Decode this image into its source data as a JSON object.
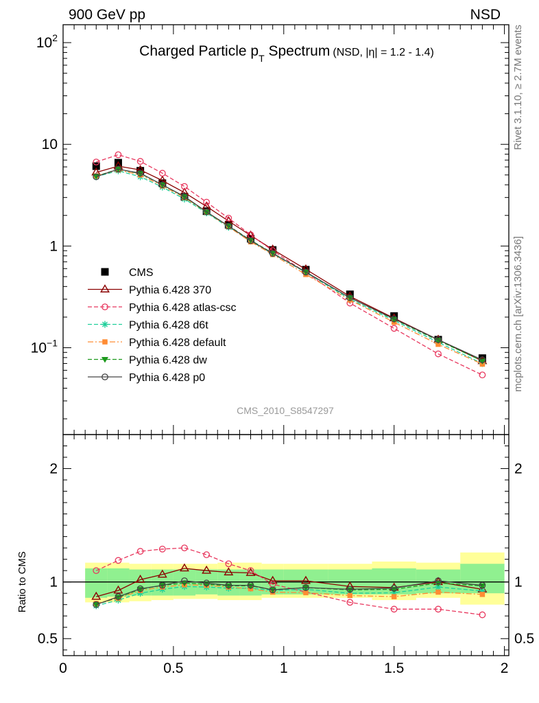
{
  "header": {
    "left": "900 GeV pp",
    "right": "NSD"
  },
  "side": {
    "upper": "Rivet 3.1.10, ≥ 2.7M events",
    "lower": "mcplots.cern.ch [arXiv:1306.3436]"
  },
  "title": {
    "main": "Charged Particle p",
    "sub": "T",
    "tail": " Spectrum",
    "small": "(NSD, |η| = 1.2 - 1.4)"
  },
  "watermark": "CMS_2010_S8547297",
  "colors": {
    "data": "#000000",
    "p370": "#8b0000",
    "atlas": "#e8365d",
    "d6t": "#1fcf9a",
    "default": "#ff8c33",
    "dw": "#1c9a1c",
    "p0": "#444444",
    "band_inner": "#90f090",
    "band_outer": "#ffff99"
  },
  "chart_data": {
    "type": "line",
    "x_ticks": [
      "0",
      "0.5",
      "1",
      "1.5",
      "2"
    ],
    "xlim": [
      0,
      2.02
    ],
    "upper": {
      "yscale": "log",
      "ylim": [
        0.014,
        150
      ],
      "y_ticks": [
        "10",
        "1"
      ],
      "x": [
        0.15,
        0.25,
        0.35,
        0.45,
        0.55,
        0.65,
        0.75,
        0.85,
        0.95,
        1.1,
        1.3,
        1.5,
        1.7,
        1.9
      ],
      "series": [
        {
          "name": "CMS",
          "key": "data",
          "marker": "square",
          "values": [
            6.1,
            6.6,
            5.5,
            4.15,
            3.05,
            2.2,
            1.62,
            1.18,
            0.915,
            0.585,
            0.335,
            0.205,
            0.12,
            0.079
          ]
        },
        {
          "name": "Pythia 6.428 370",
          "key": "p370",
          "marker": "triangle",
          "values": [
            5.3,
            6.1,
            5.6,
            4.4,
            3.35,
            2.45,
            1.76,
            1.27,
            0.925,
            0.59,
            0.32,
            0.195,
            0.12,
            0.074
          ]
        },
        {
          "name": "Pythia 6.428 atlas-csc",
          "key": "atlas",
          "marker": "circle-open",
          "values": [
            6.7,
            7.9,
            6.8,
            5.2,
            3.85,
            2.7,
            1.88,
            1.29,
            0.9,
            0.55,
            0.275,
            0.155,
            0.087,
            0.054
          ]
        },
        {
          "name": "Pythia 6.428 d6t",
          "key": "d6t",
          "marker": "star",
          "values": [
            4.8,
            5.5,
            4.8,
            3.8,
            2.9,
            2.12,
            1.53,
            1.12,
            0.84,
            0.55,
            0.3,
            0.185,
            0.113,
            0.07
          ]
        },
        {
          "name": "Pythia 6.428 default",
          "key": "default",
          "marker": "square-small",
          "values": [
            4.9,
            5.6,
            5.0,
            3.9,
            3.0,
            2.15,
            1.55,
            1.1,
            0.825,
            0.525,
            0.295,
            0.178,
            0.108,
            0.069
          ]
        },
        {
          "name": "Pythia 6.428 dw",
          "key": "dw",
          "marker": "triangle-down",
          "values": [
            4.85,
            5.7,
            5.15,
            4.0,
            3.05,
            2.15,
            1.58,
            1.14,
            0.85,
            0.555,
            0.31,
            0.19,
            0.118,
            0.074
          ]
        },
        {
          "name": "Pythia 6.428 p0",
          "key": "p0",
          "marker": "circle-open",
          "values": [
            4.8,
            5.7,
            5.2,
            4.0,
            3.07,
            2.17,
            1.57,
            1.13,
            0.845,
            0.555,
            0.31,
            0.192,
            0.12,
            0.076
          ]
        }
      ]
    },
    "ratio": {
      "ylabel": "Ratio to CMS",
      "ylim": [
        0.35,
        2.3
      ],
      "y_ticks": [
        "2",
        "1",
        "0.5"
      ],
      "bin_edges": [
        0.1,
        0.2,
        0.3,
        0.4,
        0.5,
        0.6,
        0.7,
        0.8,
        0.9,
        1.0,
        1.2,
        1.4,
        1.6,
        1.8,
        2.0
      ],
      "band_inner": [
        [
          0.86,
          1.12
        ],
        [
          0.87,
          1.12
        ],
        [
          0.88,
          1.11
        ],
        [
          0.88,
          1.11
        ],
        [
          0.88,
          1.11
        ],
        [
          0.89,
          1.11
        ],
        [
          0.88,
          1.11
        ],
        [
          0.88,
          1.11
        ],
        [
          0.89,
          1.11
        ],
        [
          0.89,
          1.11
        ],
        [
          0.89,
          1.11
        ],
        [
          0.89,
          1.12
        ],
        [
          0.9,
          1.11
        ],
        [
          0.9,
          1.16
        ]
      ],
      "band_outer": [
        [
          0.82,
          1.17
        ],
        [
          0.82,
          1.17
        ],
        [
          0.83,
          1.16
        ],
        [
          0.84,
          1.16
        ],
        [
          0.85,
          1.16
        ],
        [
          0.85,
          1.16
        ],
        [
          0.84,
          1.17
        ],
        [
          0.84,
          1.17
        ],
        [
          0.86,
          1.16
        ],
        [
          0.86,
          1.16
        ],
        [
          0.86,
          1.16
        ],
        [
          0.84,
          1.18
        ],
        [
          0.86,
          1.17
        ],
        [
          0.8,
          1.26
        ]
      ],
      "series": [
        {
          "key": "p370",
          "values": [
            0.87,
            0.925,
            1.02,
            1.065,
            1.12,
            1.1,
            1.085,
            1.08,
            1.01,
            1.01,
            0.96,
            0.95,
            1.0,
            0.935
          ]
        },
        {
          "key": "atlas",
          "values": [
            1.1,
            1.19,
            1.27,
            1.29,
            1.3,
            1.24,
            1.16,
            1.1,
            0.98,
            null,
            0.82,
            0.76,
            0.76,
            0.71
          ]
        },
        {
          "key": "d6t",
          "values": [
            0.79,
            0.84,
            0.9,
            0.935,
            0.96,
            0.955,
            0.945,
            0.945,
            0.925,
            0.935,
            0.9,
            0.905,
            0.955,
            0.92
          ]
        },
        {
          "key": "default",
          "values": [
            0.81,
            0.855,
            0.925,
            0.955,
            0.975,
            0.97,
            0.955,
            0.94,
            0.91,
            0.905,
            0.88,
            0.87,
            0.91,
            0.89
          ]
        },
        {
          "key": "dw",
          "values": [
            0.8,
            0.865,
            0.935,
            0.97,
            0.99,
            0.98,
            0.965,
            0.965,
            0.93,
            0.95,
            0.93,
            0.935,
            0.99,
            0.965
          ]
        },
        {
          "key": "p0",
          "values": [
            0.8,
            0.87,
            0.94,
            0.97,
            1.01,
            0.99,
            0.97,
            0.97,
            0.93,
            0.95,
            0.935,
            0.945,
            1.01,
            0.97
          ]
        }
      ]
    }
  }
}
